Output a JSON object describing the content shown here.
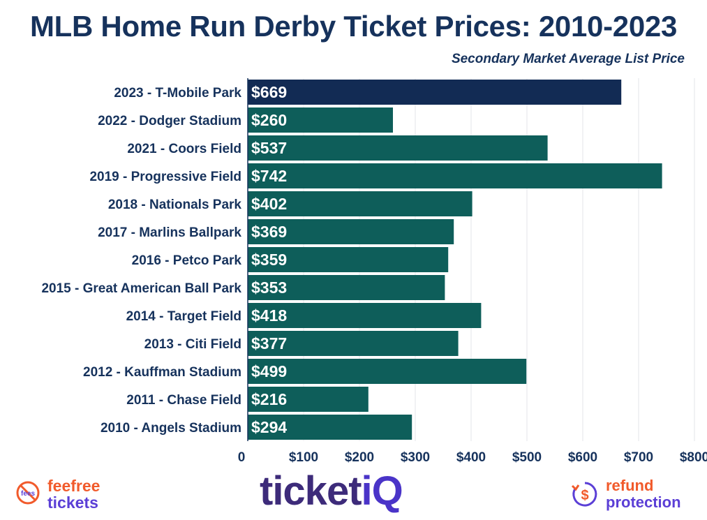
{
  "chart_data": {
    "type": "bar",
    "orientation": "horizontal",
    "title": "MLB Home Run Derby Ticket Prices: 2010-2023",
    "subtitle": "Secondary Market Average List Price",
    "categories": [
      "2023 - T-Mobile Park",
      "2022 - Dodger Stadium",
      "2021 - Coors Field",
      "2019 - Progressive Field",
      "2018 - Nationals Park",
      "2017 - Marlins Ballpark",
      "2016 - Petco Park",
      "2015 - Great American Ball Park",
      "2014 - Target Field",
      "2013 - Citi Field",
      "2012 - Kauffman Stadium",
      "2011 - Chase Field",
      "2010 - Angels Stadium"
    ],
    "values": [
      669,
      260,
      537,
      742,
      402,
      369,
      359,
      353,
      418,
      377,
      499,
      216,
      294
    ],
    "data_labels": [
      "$669",
      "$260",
      "$537",
      "$742",
      "$402",
      "$369",
      "$359",
      "$353",
      "$418",
      "$377",
      "$499",
      "$216",
      "$294"
    ],
    "xlim": [
      0,
      800
    ],
    "xticks": [
      "0",
      "$100",
      "$200",
      "$300",
      "$400",
      "$500",
      "$600",
      "$700",
      "$800"
    ],
    "xtick_values": [
      0,
      100,
      200,
      300,
      400,
      500,
      600,
      700,
      800
    ],
    "grid": "vertical",
    "colors": {
      "highlight": "#122b54",
      "bar": "#0e5e5a",
      "text": "#16325c"
    },
    "highlight_index": 0
  },
  "footer": {
    "left_logo_icon_text": "fees",
    "left_logo_line1": "feefree",
    "left_logo_line2": "tickets",
    "center_logo_main": "ticket",
    "center_logo_accent": "iQ",
    "right_logo_icon": "dollar-refund-icon",
    "right_logo_line1": "refund",
    "right_logo_line2": "protection"
  }
}
